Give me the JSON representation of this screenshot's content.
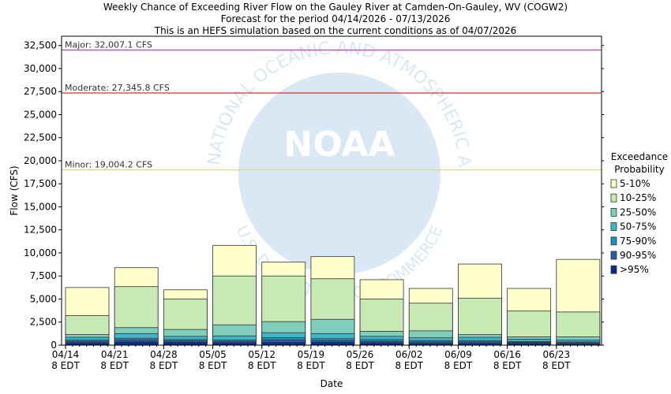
{
  "chart_data": {
    "type": "bar",
    "title": [
      "Weekly Chance of Exceeding River Flow on the Gauley River at Camden-On-Gauley, WV (COGW2)",
      "Forecast for the period 04/14/2026 - 07/13/2026",
      "This is an HEFS simulation based on the current conditions as of 04/07/2026"
    ],
    "xlabel": "Date",
    "ylabel": "Flow (CFS)",
    "ylim": [
      0,
      33500
    ],
    "yticks": [
      0,
      2500,
      5000,
      7500,
      10000,
      12500,
      15000,
      17500,
      20000,
      22500,
      25000,
      27500,
      30000,
      32500
    ],
    "ytick_labels": [
      "0",
      "2,500",
      "5,000",
      "7,500",
      "10,000",
      "12,500",
      "15,000",
      "17,500",
      "20,000",
      "22,500",
      "25,000",
      "27,500",
      "30,000",
      "32,500"
    ],
    "categories": [
      [
        "04/14",
        "8 EDT"
      ],
      [
        "04/21",
        "8 EDT"
      ],
      [
        "04/28",
        "8 EDT"
      ],
      [
        "05/05",
        "8 EDT"
      ],
      [
        "05/12",
        "8 EDT"
      ],
      [
        "05/19",
        "8 EDT"
      ],
      [
        "05/26",
        "8 EDT"
      ],
      [
        "06/02",
        "8 EDT"
      ],
      [
        "06/09",
        "8 EDT"
      ],
      [
        "06/16",
        "8 EDT"
      ],
      [
        "06/23",
        "8 EDT"
      ]
    ],
    "legend_title": [
      "Exceedance",
      "Probability"
    ],
    "legend_position": "right",
    "grid": false,
    "series": [
      {
        "name": "5-10%",
        "color": "#ffffcc",
        "values": [
          6250,
          8400,
          6000,
          10800,
          9000,
          9600,
          7100,
          6150,
          8800,
          6150,
          9300
        ]
      },
      {
        "name": "10-25%",
        "color": "#c7e9b4",
        "values": [
          3200,
          6350,
          5000,
          7500,
          7500,
          7200,
          5000,
          4550,
          5100,
          3700,
          3600
        ]
      },
      {
        "name": "25-50%",
        "color": "#7fcdbb",
        "values": [
          1150,
          1900,
          1700,
          2200,
          2550,
          2800,
          1500,
          1550,
          1150,
          900,
          900
        ]
      },
      {
        "name": "50-75%",
        "color": "#41b6c4",
        "values": [
          850,
          1250,
          950,
          1000,
          1350,
          1250,
          950,
          800,
          850,
          650,
          550
        ]
      },
      {
        "name": "75-90%",
        "color": "#1d91c0",
        "values": [
          550,
          750,
          600,
          550,
          800,
          700,
          600,
          500,
          500,
          400,
          350
        ]
      },
      {
        "name": "90-95%",
        "color": "#225ea8",
        "values": [
          400,
          550,
          450,
          400,
          550,
          500,
          400,
          350,
          350,
          300,
          250
        ]
      },
      {
        "name": ">95%",
        "color": "#0c2c84",
        "values": [
          250,
          350,
          300,
          250,
          300,
          300,
          250,
          200,
          200,
          200,
          150
        ]
      }
    ],
    "thresholds": [
      {
        "label": "Major: 32,007.1 CFS",
        "value": 32007.1,
        "color": "#cc33cc"
      },
      {
        "label": "Moderate: 27,345.8 CFS",
        "value": 27345.8,
        "color": "#cc3333"
      },
      {
        "label": "Minor: 19,004.2 CFS",
        "value": 19004.2,
        "color": "#e6d96e"
      }
    ],
    "watermark": [
      "NOAA",
      "NATIONAL OCEANIC AND ATMOSPHERIC ADMINISTRATION",
      "U.S. DEPARTMENT OF COMMERCE"
    ]
  }
}
